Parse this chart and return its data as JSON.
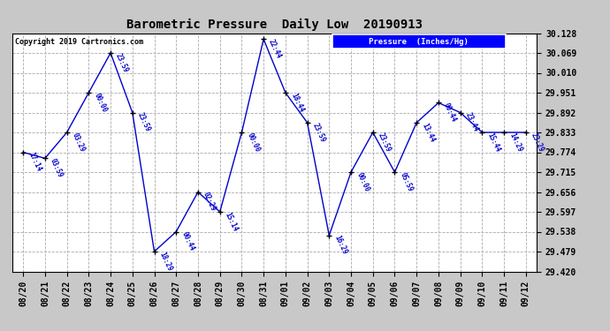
{
  "title": "Barometric Pressure  Daily Low  20190913",
  "copyright": "Copyright 2019 Cartronics.com",
  "legend_label": "Pressure  (Inches/Hg)",
  "background_color": "#c8c8c8",
  "plot_background": "#ffffff",
  "line_color": "#0000cc",
  "marker_color": "#000000",
  "grid_color": "#aaaaaa",
  "ylim": [
    29.42,
    30.128
  ],
  "yticks": [
    29.42,
    29.479,
    29.538,
    29.597,
    29.656,
    29.715,
    29.774,
    29.833,
    29.892,
    29.951,
    30.01,
    30.069,
    30.128
  ],
  "points": [
    {
      "date": "08/20",
      "time": "17:14",
      "value": 29.774
    },
    {
      "date": "08/21",
      "time": "03:59",
      "value": 29.756
    },
    {
      "date": "08/22",
      "time": "03:29",
      "value": 29.833
    },
    {
      "date": "08/23",
      "time": "00:00",
      "value": 29.951
    },
    {
      "date": "08/24",
      "time": "23:59",
      "value": 30.069
    },
    {
      "date": "08/25",
      "time": "23:59",
      "value": 29.892
    },
    {
      "date": "08/26",
      "time": "18:29",
      "value": 29.479
    },
    {
      "date": "08/27",
      "time": "00:44",
      "value": 29.538
    },
    {
      "date": "08/28",
      "time": "02:29",
      "value": 29.656
    },
    {
      "date": "08/29",
      "time": "15:14",
      "value": 29.597
    },
    {
      "date": "08/30",
      "time": "00:00",
      "value": 29.833
    },
    {
      "date": "08/31",
      "time": "22:44",
      "value": 30.11
    },
    {
      "date": "09/01",
      "time": "18:44",
      "value": 29.951
    },
    {
      "date": "09/02",
      "time": "23:59",
      "value": 29.862
    },
    {
      "date": "09/03",
      "time": "16:29",
      "value": 29.527
    },
    {
      "date": "09/04",
      "time": "00:00",
      "value": 29.715
    },
    {
      "date": "09/05",
      "time": "23:59",
      "value": 29.833
    },
    {
      "date": "09/06",
      "time": "05:59",
      "value": 29.715
    },
    {
      "date": "09/07",
      "time": "13:44",
      "value": 29.862
    },
    {
      "date": "09/08",
      "time": "00:44",
      "value": 29.921
    },
    {
      "date": "09/09",
      "time": "23:44",
      "value": 29.892
    },
    {
      "date": "09/10",
      "time": "15:44",
      "value": 29.833
    },
    {
      "date": "09/11",
      "time": "14:29",
      "value": 29.833
    },
    {
      "date": "09/12",
      "time": "23:29",
      "value": 29.833
    }
  ],
  "figwidth": 6.9,
  "figheight": 3.75,
  "dpi": 100
}
